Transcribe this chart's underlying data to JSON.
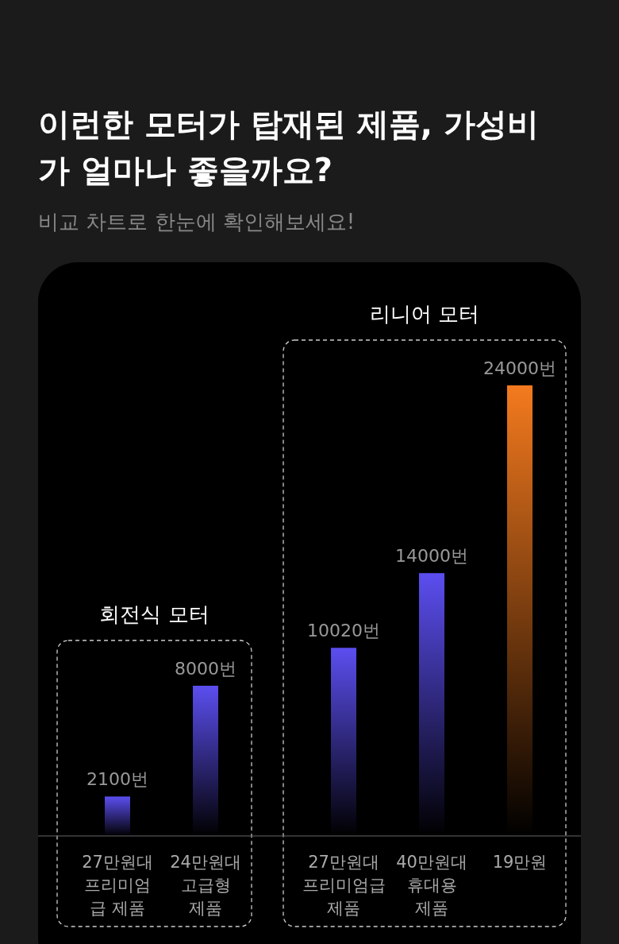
{
  "chart_data": {
    "type": "bar",
    "title": "이런한 모터가 탑재된 제품, 가성비\n가 얼마나 좋을까요?",
    "subtitle": "비교 차트로 한눈에 확인해보세요!",
    "categories": [
      "27만원대\n프리미엄\n급 제품",
      "24만원대\n고급형\n제품",
      "27만원대\n프리미엄급\n제품",
      "40만원대\n휴대용\n제품",
      "19만원"
    ],
    "values": [
      2100,
      8000,
      10020,
      14000,
      24000
    ],
    "value_labels": [
      "2100번",
      "8000번",
      "10020번",
      "14000번",
      "24000번"
    ],
    "colors": [
      "#5b4ef0",
      "#5b4ef0",
      "#5b4ef0",
      "#5b4ef0",
      "#f47a1e"
    ],
    "annotations": [
      "회전식 모터",
      "리니어 모터"
    ]
  }
}
